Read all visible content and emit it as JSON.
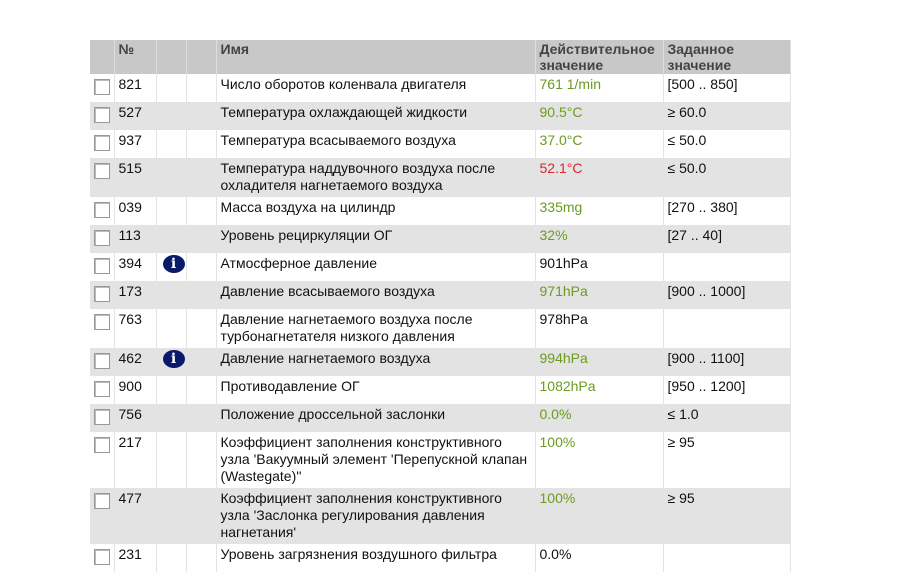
{
  "header": {
    "no": "№",
    "name": "Имя",
    "actual": "Действительное значение",
    "target": "Заданное значение"
  },
  "colors": {
    "ok": "#6b9b20",
    "bad": "#d8282a"
  },
  "rows": [
    {
      "no": "821",
      "name": "Число оборотов коленвала двигателя",
      "actual": "761 1/min",
      "status": "green",
      "target": "[500 .. 850]",
      "info": false
    },
    {
      "no": "527",
      "name": "Температура охлаждающей жидкости",
      "actual": "90.5°C",
      "status": "green",
      "target": "≥ 60.0",
      "info": false
    },
    {
      "no": "937",
      "name": "Температура всасываемого воздуха",
      "actual": "37.0°C",
      "status": "green",
      "target": "≤ 50.0",
      "info": false
    },
    {
      "no": "515",
      "name": "Температура наддувочного воздуха после охладителя нагнетаемого воздуха",
      "actual": "52.1°C",
      "status": "red",
      "target": "≤ 50.0",
      "info": false
    },
    {
      "no": "039",
      "name": "Масса воздуха на цилиндр",
      "actual": "335mg",
      "status": "green",
      "target": "[270 .. 380]",
      "info": false
    },
    {
      "no": "113",
      "name": "Уровень рециркуляции ОГ",
      "actual": "32%",
      "status": "green",
      "target": "[27 .. 40]",
      "info": false
    },
    {
      "no": "394",
      "name": "Атмосферное давление",
      "actual": "901hPa",
      "status": "",
      "target": "",
      "info": true
    },
    {
      "no": "173",
      "name": "Давление всасываемого воздуха",
      "actual": "971hPa",
      "status": "green",
      "target": "[900 .. 1000]",
      "info": false
    },
    {
      "no": "763",
      "name": "Давление нагнетаемого воздуха после турбонагнетателя низкого давления",
      "actual": "978hPa",
      "status": "",
      "target": "",
      "info": false
    },
    {
      "no": "462",
      "name": "Давление нагнетаемого воздуха",
      "actual": "994hPa",
      "status": "green",
      "target": "[900 .. 1100]",
      "info": true
    },
    {
      "no": "900",
      "name": "Противодавление ОГ",
      "actual": "1082hPa",
      "status": "green",
      "target": "[950 .. 1200]",
      "info": false
    },
    {
      "no": "756",
      "name": "Положение дроссельной заслонки",
      "actual": "0.0%",
      "status": "green",
      "target": "≤ 1.0",
      "info": false
    },
    {
      "no": "217",
      "name": "Коэффициент заполнения конструктивного узла 'Вакуумный элемент 'Перепускной клапан (Wastegate)''",
      "actual": "100%",
      "status": "green",
      "target": "≥ 95",
      "info": false
    },
    {
      "no": "477",
      "name": "Коэффициент заполнения конструктивного узла 'Заслонка регулирования давления нагнетания'",
      "actual": "100%",
      "status": "green",
      "target": "≥ 95",
      "info": false
    },
    {
      "no": "231",
      "name": "Уровень загрязнения воздушного фильтра",
      "actual": "0.0%",
      "status": "",
      "target": "",
      "info": false
    }
  ]
}
